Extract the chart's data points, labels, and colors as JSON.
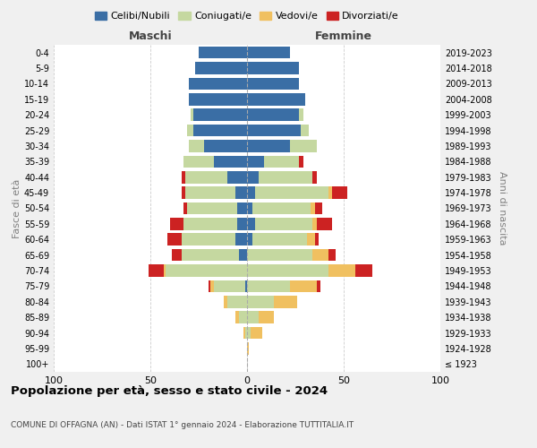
{
  "age_groups": [
    "100+",
    "95-99",
    "90-94",
    "85-89",
    "80-84",
    "75-79",
    "70-74",
    "65-69",
    "60-64",
    "55-59",
    "50-54",
    "45-49",
    "40-44",
    "35-39",
    "30-34",
    "25-29",
    "20-24",
    "15-19",
    "10-14",
    "5-9",
    "0-4"
  ],
  "birth_years": [
    "≤ 1923",
    "1924-1928",
    "1929-1933",
    "1934-1938",
    "1939-1943",
    "1944-1948",
    "1949-1953",
    "1954-1958",
    "1959-1963",
    "1964-1968",
    "1969-1973",
    "1974-1978",
    "1979-1983",
    "1984-1988",
    "1989-1993",
    "1994-1998",
    "1999-2003",
    "2004-2008",
    "2009-2013",
    "2014-2018",
    "2019-2023"
  ],
  "colors": {
    "celibi": "#3A6EA5",
    "coniugati": "#C5D8A0",
    "vedovi": "#F0C060",
    "divorziati": "#CC2222"
  },
  "maschi": {
    "celibi": [
      0,
      0,
      0,
      0,
      0,
      1,
      0,
      4,
      6,
      5,
      5,
      6,
      10,
      17,
      22,
      28,
      28,
      30,
      30,
      27,
      25
    ],
    "coniugati": [
      0,
      0,
      1,
      4,
      10,
      16,
      42,
      30,
      28,
      28,
      26,
      26,
      22,
      16,
      8,
      3,
      1,
      0,
      0,
      0,
      0
    ],
    "vedovi": [
      0,
      0,
      1,
      2,
      2,
      2,
      1,
      0,
      0,
      0,
      0,
      0,
      0,
      0,
      0,
      0,
      0,
      0,
      0,
      0,
      0
    ],
    "divorziati": [
      0,
      0,
      0,
      0,
      0,
      1,
      8,
      5,
      7,
      7,
      2,
      2,
      2,
      0,
      0,
      0,
      0,
      0,
      0,
      0,
      0
    ]
  },
  "femmine": {
    "celibi": [
      0,
      0,
      0,
      0,
      0,
      0,
      0,
      0,
      3,
      4,
      3,
      4,
      6,
      9,
      22,
      28,
      27,
      30,
      27,
      27,
      22
    ],
    "coniugati": [
      0,
      0,
      2,
      6,
      14,
      22,
      42,
      34,
      28,
      30,
      30,
      38,
      28,
      18,
      14,
      4,
      2,
      0,
      0,
      0,
      0
    ],
    "vedovi": [
      0,
      1,
      6,
      8,
      12,
      14,
      14,
      8,
      4,
      2,
      2,
      2,
      0,
      0,
      0,
      0,
      0,
      0,
      0,
      0,
      0
    ],
    "divorziati": [
      0,
      0,
      0,
      0,
      0,
      2,
      9,
      4,
      2,
      8,
      4,
      8,
      2,
      2,
      0,
      0,
      0,
      0,
      0,
      0,
      0
    ]
  },
  "xlim": 100,
  "title": "Popolazione per età, sesso e stato civile - 2024",
  "subtitle": "COMUNE DI OFFAGNA (AN) - Dati ISTAT 1° gennaio 2024 - Elaborazione TUTTITALIA.IT",
  "ylabel_left": "Fasce di età",
  "ylabel_right": "Anni di nascita",
  "xlabel_left": "Maschi",
  "xlabel_right": "Femmine",
  "legend_labels": [
    "Celibi/Nubili",
    "Coniugati/e",
    "Vedovi/e",
    "Divorziati/e"
  ],
  "bg_color": "#f0f0f0",
  "plot_bg": "#ffffff"
}
